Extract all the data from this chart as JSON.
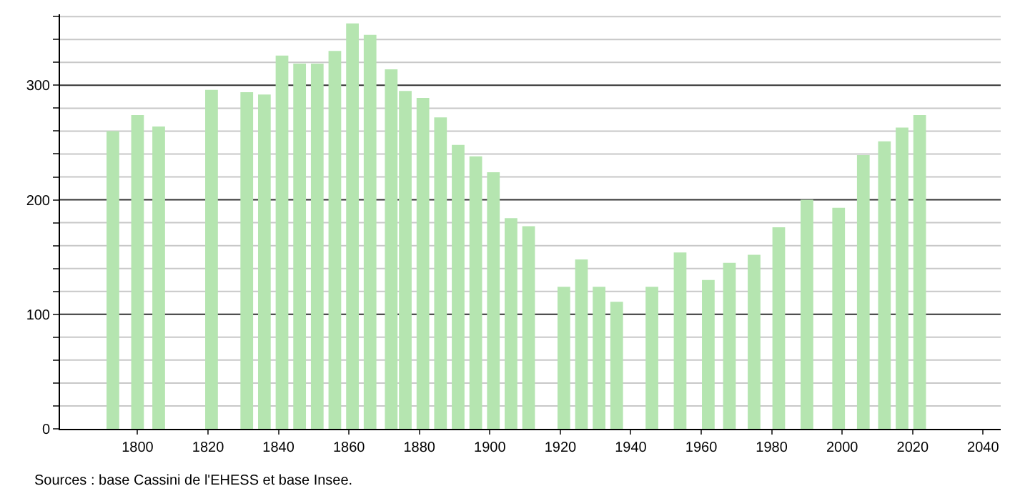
{
  "chart_data": {
    "type": "bar",
    "x": [
      1793,
      1800,
      1806,
      1821,
      1831,
      1836,
      1841,
      1846,
      1851,
      1856,
      1861,
      1866,
      1872,
      1876,
      1881,
      1886,
      1891,
      1896,
      1901,
      1906,
      1911,
      1921,
      1926,
      1931,
      1936,
      1946,
      1954,
      1962,
      1968,
      1975,
      1982,
      1990,
      1999,
      2006,
      2012,
      2017,
      2022
    ],
    "values": [
      260,
      274,
      264,
      296,
      294,
      292,
      326,
      319,
      319,
      330,
      354,
      344,
      314,
      295,
      289,
      272,
      248,
      238,
      224,
      184,
      177,
      124,
      148,
      124,
      111,
      124,
      154,
      130,
      145,
      152,
      176,
      200,
      193,
      239,
      251,
      263,
      274
    ],
    "color": "#b5e5b0",
    "xlim": [
      1778,
      2045
    ],
    "xticks": [
      1800,
      1820,
      1840,
      1860,
      1880,
      1900,
      1920,
      1940,
      1960,
      1980,
      2000,
      2020,
      2040
    ],
    "ylim": [
      0,
      362
    ],
    "yticks": [
      0,
      {
        "value": 20,
        "label": null
      },
      {
        "value": 40,
        "label": null
      },
      {
        "value": 60,
        "label": null
      },
      {
        "value": 80,
        "label": null
      },
      100,
      {
        "value": 120,
        "label": null
      },
      {
        "value": 140,
        "label": null
      },
      {
        "value": 160,
        "label": null
      },
      {
        "value": 180,
        "label": null
      },
      200,
      {
        "value": 220,
        "label": null
      },
      {
        "value": 240,
        "label": null
      },
      {
        "value": 260,
        "label": null
      },
      {
        "value": 280,
        "label": null
      },
      300,
      {
        "value": 320,
        "label": null
      },
      {
        "value": 340,
        "label": null
      },
      {
        "value": 360,
        "label": null
      }
    ],
    "grid": "y",
    "annotations": [
      "Sources : base Cassini de l'EHESS et base Insee."
    ]
  }
}
